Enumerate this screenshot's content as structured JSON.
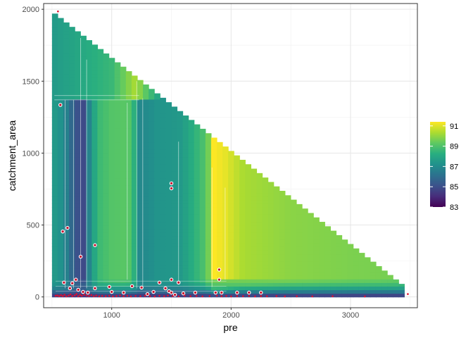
{
  "chart_data": {
    "type": "heatmap",
    "xlabel": "pre",
    "ylabel": "catchment_area",
    "xlim": [
      430,
      3560
    ],
    "ylim": [
      -75,
      2040
    ],
    "x_ticks": [
      1000,
      2000,
      3000
    ],
    "y_ticks": [
      0,
      500,
      1000,
      1500,
      2000
    ],
    "grid": true,
    "legend": {
      "placement": "right",
      "range": [
        83,
        91.4
      ],
      "ticks": [
        83,
        85,
        87,
        89,
        91
      ],
      "palette": [
        "#440154",
        "#472d7b",
        "#3b528b",
        "#2c728e",
        "#21918c",
        "#28ae80",
        "#5ec962",
        "#addc30",
        "#fde725"
      ]
    },
    "fill_x_range": [
      500,
      3450
    ],
    "fill_max_area": [
      [
        500,
        1970
      ],
      [
        3450,
        60
      ]
    ],
    "value_by_pre": [
      [
        500,
        87.6
      ],
      [
        580,
        87.2
      ],
      [
        650,
        86.2
      ],
      [
        700,
        85.2
      ],
      [
        760,
        84.8
      ],
      [
        800,
        86.5
      ],
      [
        880,
        88.6
      ],
      [
        1000,
        89.1
      ],
      [
        1120,
        89.2
      ],
      [
        1180,
        89.0
      ],
      [
        1210,
        87.0
      ],
      [
        1260,
        86.9
      ],
      [
        1380,
        87.3
      ],
      [
        1500,
        87.4
      ],
      [
        1580,
        87.5
      ],
      [
        1700,
        88.4
      ],
      [
        1800,
        89.2
      ],
      [
        1850,
        91.4
      ],
      [
        1950,
        91.1
      ],
      [
        2100,
        90.3
      ],
      [
        2500,
        89.9
      ],
      [
        3000,
        89.7
      ],
      [
        3450,
        89.6
      ]
    ],
    "upper_band": {
      "from_area": 1370,
      "values_by_pre": [
        [
          500,
          87.5
        ],
        [
          1000,
          88.6
        ],
        [
          1200,
          90.3
        ],
        [
          1400,
          87.8
        ]
      ]
    },
    "low_band_values": [
      [
        0,
        83.8
      ],
      [
        40,
        85.2
      ],
      [
        80,
        86.6
      ],
      [
        120,
        87.5
      ]
    ],
    "points_all": [
      [
        530,
        8
      ],
      [
        545,
        10
      ],
      [
        560,
        5
      ],
      [
        575,
        12
      ],
      [
        590,
        6
      ],
      [
        605,
        15
      ],
      [
        620,
        4
      ],
      [
        640,
        9
      ],
      [
        655,
        18
      ],
      [
        670,
        6
      ],
      [
        690,
        11
      ],
      [
        705,
        20
      ],
      [
        720,
        5
      ],
      [
        735,
        14
      ],
      [
        750,
        8
      ],
      [
        770,
        16
      ],
      [
        790,
        10
      ],
      [
        810,
        6
      ],
      [
        830,
        12
      ],
      [
        850,
        5
      ],
      [
        870,
        9
      ],
      [
        895,
        4
      ],
      [
        920,
        7
      ],
      [
        950,
        5
      ],
      [
        980,
        8
      ],
      [
        1010,
        4
      ],
      [
        1040,
        6
      ],
      [
        1070,
        10
      ],
      [
        1100,
        5
      ],
      [
        1130,
        8
      ],
      [
        1160,
        4
      ],
      [
        1200,
        7
      ],
      [
        1240,
        5
      ],
      [
        1280,
        9
      ],
      [
        1320,
        6
      ],
      [
        1360,
        4
      ],
      [
        1400,
        8
      ],
      [
        1440,
        5
      ],
      [
        1470,
        10
      ],
      [
        1510,
        6
      ],
      [
        1560,
        4
      ],
      [
        1610,
        9
      ],
      [
        1660,
        5
      ],
      [
        1710,
        7
      ],
      [
        1760,
        4
      ],
      [
        1820,
        6
      ],
      [
        1880,
        8
      ],
      [
        1920,
        5
      ],
      [
        1960,
        7
      ],
      [
        2000,
        4
      ],
      [
        2050,
        6
      ],
      [
        2100,
        5
      ],
      [
        2150,
        7
      ],
      [
        2200,
        4
      ],
      [
        2250,
        6
      ],
      [
        2300,
        5
      ],
      [
        2380,
        6
      ],
      [
        2450,
        4
      ],
      [
        2550,
        5
      ],
      [
        2680,
        4
      ],
      [
        2850,
        5
      ],
      [
        3120,
        4
      ],
      [
        3480,
        20
      ],
      [
        550,
        1985
      ]
    ],
    "points_white_ring": [
      [
        570,
        1335
      ],
      [
        590,
        455
      ],
      [
        630,
        480
      ],
      [
        860,
        360
      ],
      [
        740,
        280
      ],
      [
        1500,
        790
      ],
      [
        1500,
        755
      ],
      [
        1900,
        190
      ],
      [
        1900,
        120
      ],
      [
        700,
        120
      ],
      [
        1500,
        120
      ],
      [
        1400,
        100
      ],
      [
        1560,
        100
      ],
      [
        600,
        100
      ],
      [
        670,
        95
      ],
      [
        650,
        60
      ],
      [
        720,
        50
      ],
      [
        860,
        60
      ],
      [
        980,
        70
      ],
      [
        1170,
        75
      ],
      [
        1250,
        65
      ],
      [
        1450,
        60
      ],
      [
        1480,
        40
      ],
      [
        1350,
        35
      ],
      [
        1500,
        30
      ],
      [
        1600,
        25
      ],
      [
        1000,
        35
      ],
      [
        760,
        35
      ],
      [
        800,
        30
      ],
      [
        1700,
        30
      ],
      [
        1870,
        30
      ],
      [
        2050,
        30
      ],
      [
        2150,
        30
      ],
      [
        2250,
        30
      ],
      [
        1920,
        30
      ],
      [
        1100,
        30
      ],
      [
        1300,
        20
      ],
      [
        1530,
        15
      ]
    ]
  }
}
